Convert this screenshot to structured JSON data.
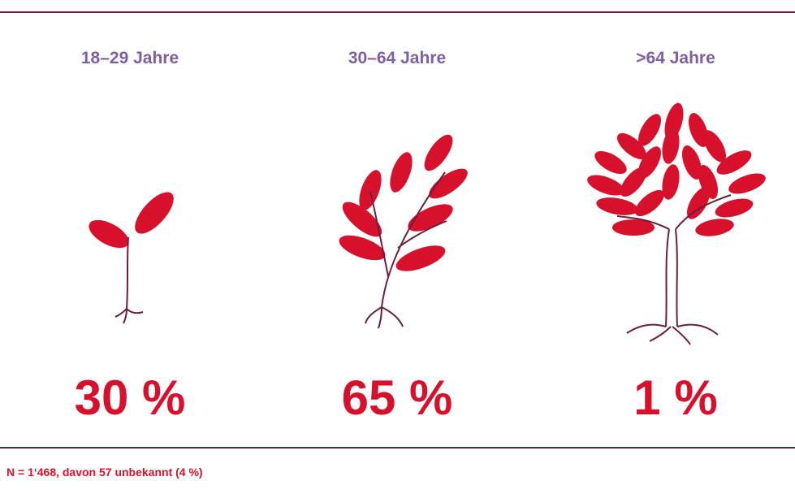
{
  "groups": [
    {
      "label": "18–29 Jahre",
      "share": "30 %"
    },
    {
      "label": "30–64 Jahre",
      "share": "65 %"
    },
    {
      "label": ">64 Jahre",
      "share": "1 %"
    }
  ],
  "footnote": "N = 1‘468, davon 57 unbekannt (4 %)"
}
